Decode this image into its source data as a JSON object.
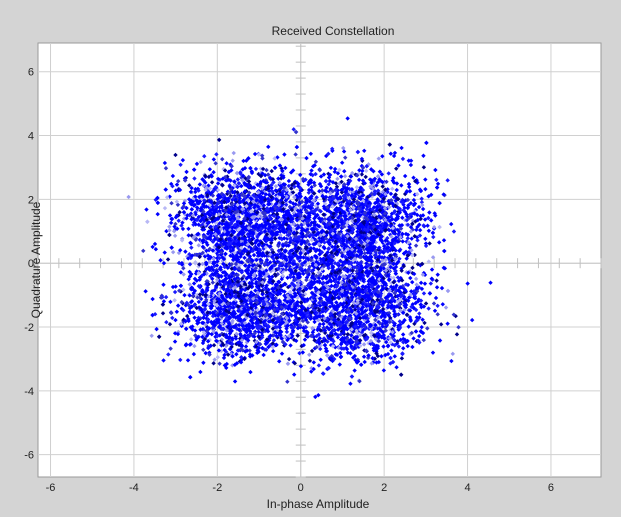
{
  "window": {
    "background_color": "#d4d4d4"
  },
  "chart_data": {
    "type": "scatter",
    "title": "Received Constellation",
    "xlabel": "In-phase Amplitude",
    "ylabel": "Quadrature Amplitude",
    "xlim": [
      -6.3,
      7.2
    ],
    "ylim": [
      -6.7,
      6.9
    ],
    "xticks": [
      -6,
      -4,
      -2,
      0,
      2,
      4,
      6
    ],
    "yticks": [
      -6,
      -4,
      -2,
      0,
      2,
      4,
      6
    ],
    "grid": true,
    "legend": "none",
    "marker": "diamond",
    "colors": [
      "#0000ff",
      "#1a1aff",
      "#00008b",
      "#3333cc",
      "#9999f0",
      "#b8b8f5"
    ],
    "ideal_points": [
      [
        -1.3,
        1.3
      ],
      [
        1.3,
        1.3
      ],
      [
        -1.3,
        -1.3
      ],
      [
        1.3,
        -1.3
      ]
    ],
    "noise_sigma": 0.85,
    "num_points": 7000
  }
}
